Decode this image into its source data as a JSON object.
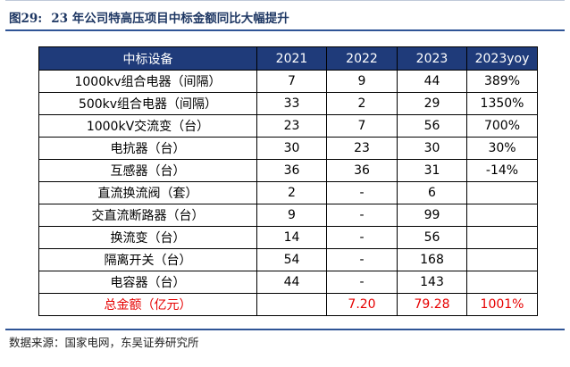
{
  "figure": {
    "label": "图29:",
    "title": "23 年公司特高压项目中标金额同比大幅提升"
  },
  "table": {
    "headers": [
      "中标设备",
      "2021",
      "2022",
      "2023",
      "2023yoy"
    ],
    "rows": [
      [
        "1000kv组合电器（间隔）",
        "7",
        "9",
        "44",
        "389%"
      ],
      [
        "500kv组合电器（间隔）",
        "33",
        "2",
        "29",
        "1350%"
      ],
      [
        "1000kV交流变（台）",
        "23",
        "7",
        "56",
        "700%"
      ],
      [
        "电抗器（台）",
        "30",
        "23",
        "30",
        "30%"
      ],
      [
        "互感器（台）",
        "36",
        "36",
        "31",
        "-14%"
      ],
      [
        "直流换流阀（套）",
        "2",
        "-",
        "6",
        ""
      ],
      [
        "交直流断路器（台）",
        "9",
        "-",
        "99",
        ""
      ],
      [
        "换流变（台）",
        "14",
        "-",
        "56",
        ""
      ],
      [
        "隔离开关（台）",
        "54",
        "-",
        "168",
        ""
      ],
      [
        "电容器（台）",
        "44",
        "-",
        "143",
        ""
      ]
    ],
    "total_row": [
      "总金额（亿元）",
      "",
      "7.20",
      "79.28",
      "1001%"
    ]
  },
  "source": "数据来源：国家电网，东吴证券研究所"
}
